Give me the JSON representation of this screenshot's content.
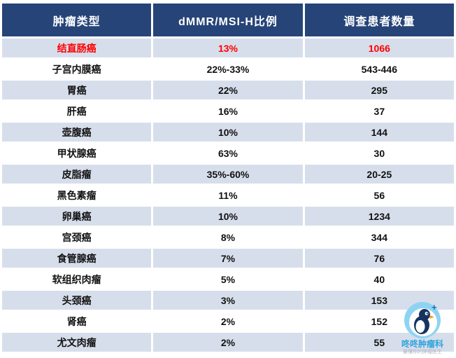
{
  "chart_data": {
    "type": "table",
    "columns": [
      "肿瘤类型",
      "dMMR/MSI-H比例",
      "调查患者数量"
    ],
    "rows": [
      [
        "结直肠癌",
        "13%",
        "1066"
      ],
      [
        "子宫内膜癌",
        "22%-33%",
        "543-446"
      ],
      [
        "胃癌",
        "22%",
        "295"
      ],
      [
        "肝癌",
        "16%",
        "37"
      ],
      [
        "壶腹癌",
        "10%",
        "144"
      ],
      [
        "甲状腺癌",
        "63%",
        "30"
      ],
      [
        "皮脂瘤",
        "35%-60%",
        "20-25"
      ],
      [
        "黑色素瘤",
        "11%",
        "56"
      ],
      [
        "卵巢癌",
        "10%",
        "1234"
      ],
      [
        "宫颈癌",
        "8%",
        "344"
      ],
      [
        "食管腺癌",
        "7%",
        "76"
      ],
      [
        "软组织肉瘤",
        "5%",
        "40"
      ],
      [
        "头颈癌",
        "3%",
        "153"
      ],
      [
        "肾癌",
        "2%",
        "152"
      ],
      [
        "尤文肉瘤",
        "2%",
        "55"
      ]
    ],
    "highlight_row_index": 0,
    "layout": "3-column data table, alternating row shading, highlighted first data row"
  },
  "logo": {
    "name": "咚咚肿瘤科",
    "tagline": "最懂你的肿瘤医生"
  },
  "colors": {
    "header_bg": "#264478",
    "header_text": "#FFFFFF",
    "row_alt_bg": "#D7DEEB",
    "row_bg": "#FFFFFF",
    "highlight_text": "#FF0000",
    "body_text": "#111111",
    "grid": "#FFFFFF",
    "logo_blue": "#2FA3DC",
    "logo_icon_bg": "#8ED4F2",
    "logo_icon_dark": "#16335F"
  }
}
